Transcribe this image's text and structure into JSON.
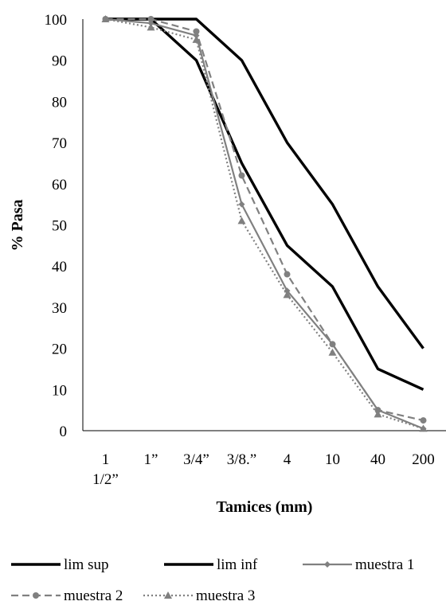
{
  "chart_data": {
    "type": "line",
    "title": "",
    "xlabel": "Tamices (mm)",
    "ylabel": "% Pasa",
    "categories": [
      [
        "1",
        "1/2”"
      ],
      [
        "1”"
      ],
      [
        "3/4”"
      ],
      [
        "3/8.”"
      ],
      [
        "4"
      ],
      [
        "10"
      ],
      [
        "40"
      ],
      [
        "200"
      ]
    ],
    "ylim": [
      0,
      100
    ],
    "yticks": [
      "0",
      "10",
      "20",
      "30",
      "40",
      "50",
      "60",
      "70",
      "80",
      "90",
      "100"
    ],
    "grid": false,
    "legend_position": "bottom",
    "series": [
      {
        "name": "lim sup",
        "values": [
          100,
          100,
          100,
          90,
          70,
          55,
          35,
          20
        ],
        "color": "#000000",
        "style": "solid",
        "marker": "none"
      },
      {
        "name": "lim inf",
        "values": [
          100,
          100,
          90,
          65,
          45,
          35,
          15,
          10
        ],
        "color": "#000000",
        "style": "solid",
        "marker": "none"
      },
      {
        "name": "muestra 1",
        "values": [
          100,
          99,
          96,
          55,
          34,
          21,
          5,
          0.5
        ],
        "color": "#808080",
        "style": "solid",
        "marker": "diamond"
      },
      {
        "name": "muestra 2",
        "values": [
          100,
          100,
          97,
          62,
          38,
          21,
          5,
          2.5
        ],
        "color": "#808080",
        "style": "dashed",
        "marker": "circle"
      },
      {
        "name": "muestra 3",
        "values": [
          100,
          98,
          95,
          51,
          33,
          19,
          4,
          0.5
        ],
        "color": "#808080",
        "style": "dotted",
        "marker": "triangle"
      }
    ]
  }
}
